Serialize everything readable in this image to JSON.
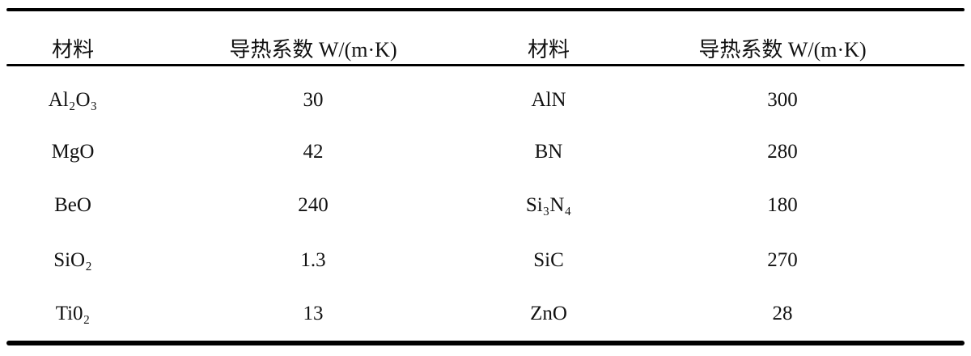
{
  "table": {
    "headers": [
      "材料",
      "导热系数 W/(m·K)",
      "材料",
      "导热系数 W/(m·K)"
    ],
    "rows": [
      [
        "Al₂O₃",
        "30",
        "AlN",
        "300"
      ],
      [
        "MgO",
        "42",
        "BN",
        "280"
      ],
      [
        "BeO",
        "240",
        "Si₃N₄",
        "180"
      ],
      [
        "SiO₂",
        "1.3",
        "SiC",
        "270"
      ],
      [
        "Ti0₂",
        "13",
        "ZnO",
        "28"
      ]
    ]
  }
}
